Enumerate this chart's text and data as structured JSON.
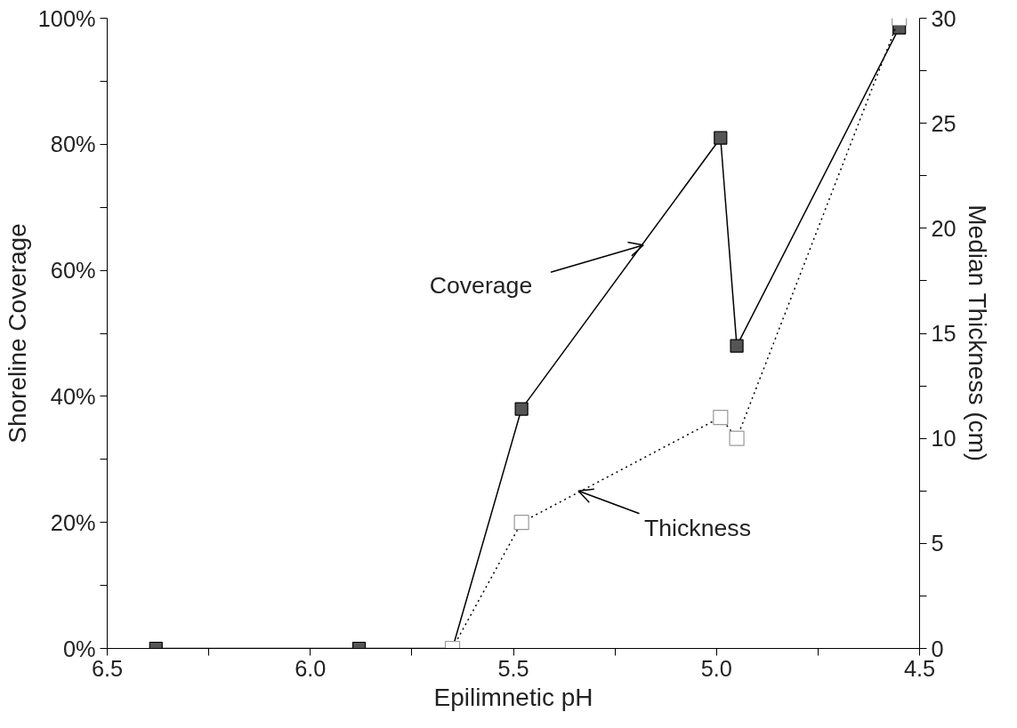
{
  "chart_data": {
    "type": "line",
    "xlabel": "Epilimnetic pH",
    "ylabel": "Shoreline Coverage",
    "y2label": "Median Thickness (cm)",
    "x": [
      6.38,
      5.88,
      5.65,
      5.48,
      4.99,
      4.95,
      4.55
    ],
    "series": [
      {
        "color": "#555555",
        "values": [
          0,
          0,
          0,
          38,
          81,
          48,
          98.5
        ],
        "marker": "square",
        "line_style": "solid"
      },
      {
        "color": "#999999",
        "values": [
          null,
          null,
          0,
          6,
          11,
          10,
          30
        ],
        "axis": "y2",
        "marker": "square",
        "line_style": "dotted"
      }
    ],
    "xlim": [
      6.5,
      4.5
    ],
    "xticks": [
      6.5,
      {
        "value": 6.25,
        "label": null
      },
      "6.0",
      {
        "value": 5.75,
        "label": null
      },
      5.5,
      {
        "value": 5.25,
        "label": null
      },
      "5.0",
      {
        "value": 4.75,
        "label": null
      },
      4.5
    ],
    "ylim": [
      0,
      100
    ],
    "yticks": [
      {
        "value": 0,
        "label": "0%"
      },
      {
        "value": 10,
        "label": null
      },
      {
        "value": 20,
        "label": "20%"
      },
      {
        "value": 30,
        "label": null
      },
      {
        "value": 40,
        "label": "40%"
      },
      {
        "value": 50,
        "label": null
      },
      {
        "value": 60,
        "label": "60%"
      },
      {
        "value": 70,
        "label": null
      },
      {
        "value": 80,
        "label": "80%"
      },
      {
        "value": 90,
        "label": null
      },
      {
        "value": 100,
        "label": "100%"
      }
    ],
    "y2lim": [
      0,
      30
    ],
    "y2ticks": [
      0,
      {
        "value": 2.5,
        "label": null
      },
      5,
      {
        "value": 7.5,
        "label": null
      },
      10,
      {
        "value": 12.5,
        "label": null
      },
      15,
      {
        "value": 17.5,
        "label": null
      },
      20,
      {
        "value": 22.5,
        "label": null
      },
      25,
      {
        "value": 27.5,
        "label": null
      },
      30
    ],
    "annotations": [
      {
        "text": "Coverage",
        "x": 5.18,
        "y": 64
      },
      {
        "text": "Thickness",
        "x": 5.34,
        "y": 25
      }
    ],
    "grid": false,
    "legend": false
  }
}
